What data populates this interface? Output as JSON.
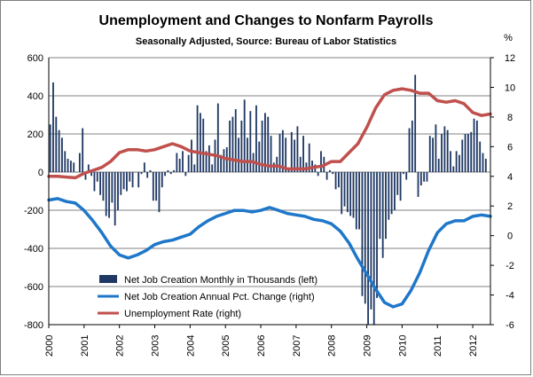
{
  "chart_data": {
    "type": "bar+line",
    "title": "Unemployment and Changes to Nonfarm Payrolls",
    "subtitle": "Seasonally  Adjusted, Source: Bureau of Labor Statistics",
    "right_unit": "%",
    "x_tick_labels": [
      "2000",
      "2001",
      "2002",
      "2003",
      "2004",
      "2005",
      "2006",
      "2007",
      "2008",
      "2009",
      "2010",
      "2011",
      "2012"
    ],
    "x_range": [
      2000.0,
      2012.5
    ],
    "left_axis": {
      "range": [
        -800,
        600
      ],
      "ticks": [
        "600",
        "400",
        "200",
        "0",
        "-200",
        "-400",
        "-600",
        "-800"
      ]
    },
    "right_axis": {
      "range": [
        -6,
        12
      ],
      "ticks": [
        "12",
        "10",
        "8",
        "6",
        "4",
        "2",
        "0",
        "-2",
        "-4",
        "-6"
      ]
    },
    "legend_position": "bottom-left",
    "colors": {
      "bars": "#1f3864",
      "annual_pct": "#1f77c9",
      "unemployment": "#c0504d",
      "grid": "#808080"
    },
    "series": [
      {
        "name": "Net Job Creation Monthly in Thousands (left)",
        "axis": "left",
        "kind": "bar",
        "x_start": 2000.0,
        "step": 0.0833,
        "values": [
          250,
          470,
          290,
          220,
          180,
          110,
          70,
          60,
          50,
          0,
          100,
          230,
          -40,
          40,
          -20,
          -100,
          -50,
          -120,
          -150,
          -230,
          -240,
          -160,
          -280,
          -200,
          -120,
          -90,
          -100,
          -50,
          -80,
          0,
          -80,
          -10,
          50,
          -30,
          10,
          -150,
          -150,
          -210,
          -80,
          -20,
          10,
          -10,
          10,
          100,
          70,
          110,
          -20,
          90,
          170,
          40,
          350,
          310,
          280,
          110,
          140,
          40,
          170,
          360,
          90,
          120,
          130,
          270,
          290,
          330,
          180,
          270,
          380,
          180,
          320,
          100,
          350,
          160,
          270,
          310,
          290,
          190,
          50,
          80,
          200,
          220,
          180,
          20,
          210,
          170,
          240,
          80,
          190,
          50,
          150,
          60,
          40,
          -20,
          110,
          80,
          -40,
          10,
          -10,
          -90,
          -80,
          -220,
          -180,
          -210,
          -230,
          -240,
          -300,
          -300,
          -650,
          -690,
          -820,
          -720,
          -800,
          -660,
          -350,
          -450,
          -350,
          -250,
          -220,
          -200,
          -120,
          -150,
          -10,
          -40,
          230,
          270,
          510,
          -130,
          -70,
          -50,
          -50,
          190,
          180,
          250,
          70,
          200,
          240,
          220,
          110,
          30,
          110,
          90,
          170,
          200,
          200,
          210,
          280,
          270,
          160,
          100,
          70
        ]
      },
      {
        "name": "Net Job Creation Annual Pct. Change (right)",
        "axis": "right",
        "kind": "line",
        "points": [
          [
            2000.0,
            2.4
          ],
          [
            2000.25,
            2.5
          ],
          [
            2000.5,
            2.3
          ],
          [
            2000.75,
            2.2
          ],
          [
            2001.0,
            1.7
          ],
          [
            2001.25,
            1.0
          ],
          [
            2001.5,
            0.2
          ],
          [
            2001.75,
            -0.7
          ],
          [
            2002.0,
            -1.3
          ],
          [
            2002.25,
            -1.5
          ],
          [
            2002.5,
            -1.3
          ],
          [
            2002.75,
            -1.0
          ],
          [
            2003.0,
            -0.6
          ],
          [
            2003.25,
            -0.4
          ],
          [
            2003.5,
            -0.3
          ],
          [
            2003.75,
            -0.1
          ],
          [
            2004.0,
            0.1
          ],
          [
            2004.25,
            0.6
          ],
          [
            2004.5,
            1.0
          ],
          [
            2004.75,
            1.3
          ],
          [
            2005.0,
            1.5
          ],
          [
            2005.25,
            1.7
          ],
          [
            2005.5,
            1.7
          ],
          [
            2005.75,
            1.6
          ],
          [
            2006.0,
            1.7
          ],
          [
            2006.25,
            1.9
          ],
          [
            2006.5,
            1.7
          ],
          [
            2006.75,
            1.5
          ],
          [
            2007.0,
            1.4
          ],
          [
            2007.25,
            1.3
          ],
          [
            2007.5,
            1.1
          ],
          [
            2007.75,
            1.0
          ],
          [
            2008.0,
            0.8
          ],
          [
            2008.25,
            0.3
          ],
          [
            2008.5,
            -0.5
          ],
          [
            2008.75,
            -1.6
          ],
          [
            2009.0,
            -2.6
          ],
          [
            2009.25,
            -3.6
          ],
          [
            2009.5,
            -4.5
          ],
          [
            2009.75,
            -4.8
          ],
          [
            2010.0,
            -4.6
          ],
          [
            2010.25,
            -3.7
          ],
          [
            2010.5,
            -2.5
          ],
          [
            2010.75,
            -1.0
          ],
          [
            2011.0,
            0.2
          ],
          [
            2011.25,
            0.8
          ],
          [
            2011.5,
            1.0
          ],
          [
            2011.75,
            1.0
          ],
          [
            2012.0,
            1.3
          ],
          [
            2012.25,
            1.4
          ],
          [
            2012.5,
            1.3
          ]
        ]
      },
      {
        "name": "Unemployment Rate (right)",
        "axis": "right",
        "kind": "line",
        "points": [
          [
            2000.0,
            4.0
          ],
          [
            2000.25,
            4.0
          ],
          [
            2000.5,
            3.95
          ],
          [
            2000.75,
            3.9
          ],
          [
            2001.0,
            4.2
          ],
          [
            2001.25,
            4.4
          ],
          [
            2001.5,
            4.6
          ],
          [
            2001.75,
            5.0
          ],
          [
            2002.0,
            5.6
          ],
          [
            2002.25,
            5.8
          ],
          [
            2002.5,
            5.8
          ],
          [
            2002.75,
            5.7
          ],
          [
            2003.0,
            5.8
          ],
          [
            2003.25,
            6.0
          ],
          [
            2003.5,
            6.2
          ],
          [
            2003.75,
            6.0
          ],
          [
            2004.0,
            5.7
          ],
          [
            2004.25,
            5.6
          ],
          [
            2004.5,
            5.5
          ],
          [
            2004.75,
            5.4
          ],
          [
            2005.0,
            5.2
          ],
          [
            2005.25,
            5.1
          ],
          [
            2005.5,
            5.0
          ],
          [
            2005.75,
            5.0
          ],
          [
            2006.0,
            4.8
          ],
          [
            2006.25,
            4.7
          ],
          [
            2006.5,
            4.7
          ],
          [
            2006.75,
            4.5
          ],
          [
            2007.0,
            4.5
          ],
          [
            2007.25,
            4.5
          ],
          [
            2007.5,
            4.6
          ],
          [
            2007.75,
            4.7
          ],
          [
            2008.0,
            5.0
          ],
          [
            2008.25,
            5.0
          ],
          [
            2008.5,
            5.6
          ],
          [
            2008.75,
            6.2
          ],
          [
            2009.0,
            7.3
          ],
          [
            2009.25,
            8.6
          ],
          [
            2009.5,
            9.5
          ],
          [
            2009.75,
            9.8
          ],
          [
            2010.0,
            9.9
          ],
          [
            2010.25,
            9.8
          ],
          [
            2010.5,
            9.6
          ],
          [
            2010.75,
            9.6
          ],
          [
            2011.0,
            9.1
          ],
          [
            2011.25,
            9.0
          ],
          [
            2011.5,
            9.1
          ],
          [
            2011.75,
            8.9
          ],
          [
            2012.0,
            8.3
          ],
          [
            2012.25,
            8.1
          ],
          [
            2012.5,
            8.2
          ]
        ]
      }
    ]
  }
}
